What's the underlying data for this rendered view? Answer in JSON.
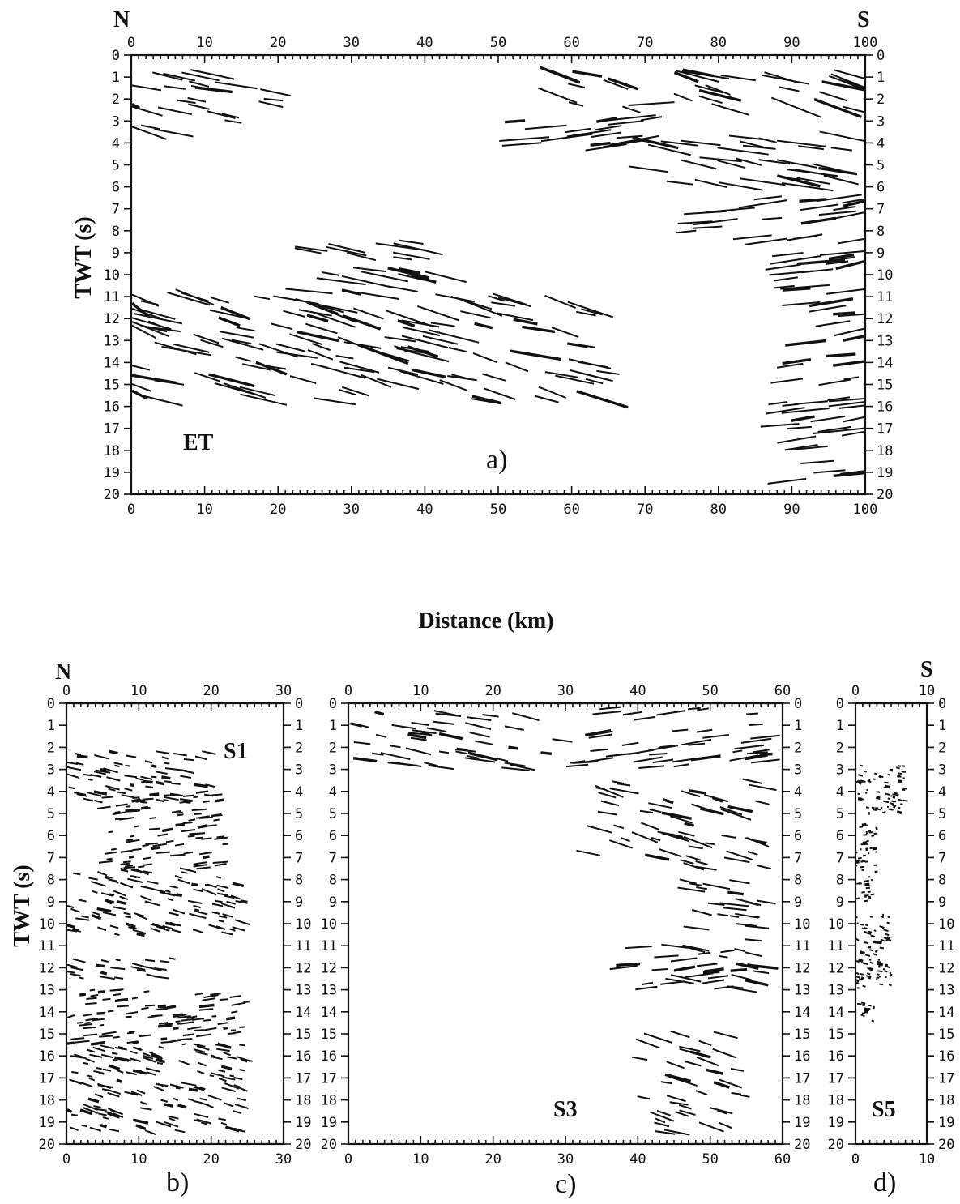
{
  "figure": {
    "shared_xlabel": "Distance (km)",
    "shared_ylabel": "TWT (s)"
  },
  "chart_data": [
    {
      "id": "a",
      "type": "line-drawing",
      "panel_letter": "a)",
      "name": "ET",
      "compass_left": "N",
      "compass_right": "S",
      "xlabel": "Distance (km)",
      "ylabel": "TWT (s)",
      "xlim": [
        0,
        100
      ],
      "ylim": [
        0,
        20
      ],
      "x_ticks": [
        0,
        10,
        20,
        30,
        40,
        50,
        60,
        70,
        80,
        90,
        100
      ],
      "y_ticks": [
        0,
        1,
        2,
        3,
        4,
        5,
        6,
        7,
        8,
        9,
        10,
        11,
        12,
        13,
        14,
        15,
        16,
        17,
        18,
        19,
        20
      ],
      "reflector_bands": [
        {
          "x": [
            0,
            20
          ],
          "y": [
            0.8,
            3.6
          ]
        },
        {
          "x": [
            52,
            72
          ],
          "y": [
            2.0,
            4.2
          ]
        },
        {
          "x": [
            58,
            100
          ],
          "y": [
            0.8,
            2.5
          ]
        },
        {
          "x": [
            70,
            100
          ],
          "y": [
            3.5,
            6.0
          ]
        },
        {
          "x": [
            75,
            100
          ],
          "y": [
            6.5,
            8.5
          ]
        },
        {
          "x": [
            0,
            65
          ],
          "y": [
            11.0,
            15.8
          ]
        },
        {
          "x": [
            24,
            45
          ],
          "y": [
            8.5,
            11.0
          ]
        },
        {
          "x": [
            88,
            100
          ],
          "y": [
            9.0,
            19.5
          ]
        }
      ]
    },
    {
      "id": "b",
      "type": "line-drawing",
      "panel_letter": "b)",
      "name": "S1",
      "compass_left": "N",
      "xlim": [
        0,
        30
      ],
      "ylim": [
        0,
        20
      ],
      "x_ticks": [
        0,
        10,
        20,
        30
      ],
      "y_ticks": [
        0,
        1,
        2,
        3,
        4,
        5,
        6,
        7,
        8,
        9,
        10,
        11,
        12,
        13,
        14,
        15,
        16,
        17,
        18,
        19,
        20
      ],
      "reflector_bands": [
        {
          "x": [
            0,
            20
          ],
          "y": [
            2.2,
            4.5
          ]
        },
        {
          "x": [
            5,
            22
          ],
          "y": [
            4.0,
            7.5
          ]
        },
        {
          "x": [
            0,
            25
          ],
          "y": [
            7.5,
            10.5
          ]
        },
        {
          "x": [
            0,
            15
          ],
          "y": [
            11.5,
            12.5
          ]
        },
        {
          "x": [
            0,
            25
          ],
          "y": [
            13.0,
            15.5
          ]
        },
        {
          "x": [
            0,
            25
          ],
          "y": [
            15.5,
            19.5
          ]
        }
      ]
    },
    {
      "id": "c",
      "type": "line-drawing",
      "panel_letter": "c)",
      "name": "S3",
      "xlim": [
        0,
        60
      ],
      "ylim": [
        0,
        20
      ],
      "x_ticks": [
        0,
        10,
        20,
        30,
        40,
        50,
        60
      ],
      "y_ticks": [
        0,
        1,
        2,
        3,
        4,
        5,
        6,
        7,
        8,
        9,
        10,
        11,
        12,
        13,
        14,
        15,
        16,
        17,
        18,
        19,
        20
      ],
      "reflector_bands": [
        {
          "x": [
            0,
            30
          ],
          "y": [
            0.3,
            3.0
          ]
        },
        {
          "x": [
            30,
            58
          ],
          "y": [
            0.2,
            3.0
          ]
        },
        {
          "x": [
            33,
            58
          ],
          "y": [
            3.5,
            7.5
          ]
        },
        {
          "x": [
            45,
            58
          ],
          "y": [
            8.0,
            13.0
          ]
        },
        {
          "x": [
            38,
            55
          ],
          "y": [
            11.0,
            13.0
          ]
        },
        {
          "x": [
            40,
            55
          ],
          "y": [
            15.0,
            19.5
          ]
        }
      ]
    },
    {
      "id": "d",
      "type": "line-drawing",
      "panel_letter": "d)",
      "name": "S5",
      "compass_right": "S",
      "xlim": [
        0,
        10
      ],
      "ylim": [
        0,
        20
      ],
      "x_ticks": [
        0,
        10
      ],
      "y_ticks": [
        0,
        1,
        2,
        3,
        4,
        5,
        6,
        7,
        8,
        9,
        10,
        11,
        12,
        13,
        14,
        15,
        16,
        17,
        18,
        19,
        20
      ],
      "reflector_bands": [
        {
          "x": [
            0,
            7
          ],
          "y": [
            2.8,
            5.0
          ]
        },
        {
          "x": [
            0,
            3
          ],
          "y": [
            5.5,
            9.0
          ]
        },
        {
          "x": [
            0,
            5
          ],
          "y": [
            9.5,
            13.0
          ]
        },
        {
          "x": [
            0,
            3
          ],
          "y": [
            13.5,
            14.5
          ]
        }
      ]
    }
  ]
}
